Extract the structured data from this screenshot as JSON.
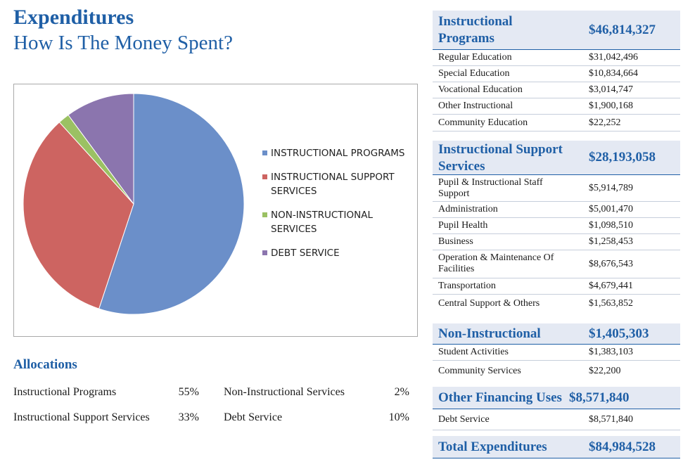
{
  "header": {
    "title": "Expenditures",
    "subtitle": "How Is The Money Spent?"
  },
  "chart_data": {
    "type": "pie",
    "categories": [
      "INSTRUCTIONAL PROGRAMS",
      "INSTRUCTIONAL SUPPORT SERVICES",
      "NON-INSTRUCTIONAL SERVICES",
      "DEBT SERVICE"
    ],
    "values": [
      46814327,
      28193058,
      1405303,
      8571840
    ],
    "colors": [
      "#6b8fc9",
      "#cd6461",
      "#9bc163",
      "#8b75ae"
    ],
    "legend_position": "right"
  },
  "allocations": {
    "title": "Allocations",
    "items": [
      {
        "label": "Instructional Programs",
        "value": "55%"
      },
      {
        "label": "Instructional Support Services",
        "value": "33%"
      },
      {
        "label": "Non-Instructional Services",
        "value": "2%"
      },
      {
        "label": "Debt Service",
        "value": "10%"
      }
    ]
  },
  "breakdown": {
    "sections": [
      {
        "title": "Instructional Programs",
        "amount": "$46,814,327",
        "rows": [
          {
            "label": "Regular Education",
            "amount": "$31,042,496"
          },
          {
            "label": "Special Education",
            "amount": "$10,834,664"
          },
          {
            "label": "Vocational Education",
            "amount": "$3,014,747"
          },
          {
            "label": "Other Instructional",
            "amount": "$1,900,168"
          },
          {
            "label": "Community Education",
            "amount": "$22,252"
          }
        ]
      },
      {
        "title": "Instructional Support Services",
        "amount": "$28,193,058",
        "rows": [
          {
            "label": "Pupil & Instructional Staff Support",
            "amount": "$5,914,789"
          },
          {
            "label": "Administration",
            "amount": "$5,001,470"
          },
          {
            "label": "Pupil Health",
            "amount": "$1,098,510"
          },
          {
            "label": "Business",
            "amount": "$1,258,453"
          },
          {
            "label": "Operation & Maintenance Of Facilities",
            "amount": "$8,676,543"
          },
          {
            "label": "Transportation",
            "amount": "$4,679,441"
          },
          {
            "label": "Central Support & Others",
            "amount": "$1,563,852"
          }
        ]
      },
      {
        "title": "Non-Instructional",
        "amount": "$1,405,303",
        "rows": [
          {
            "label": "Student Activities",
            "amount": "$1,383,103"
          },
          {
            "label": "Community Services",
            "amount": "$22,200"
          }
        ]
      },
      {
        "title": "Other Financing Uses",
        "amount": "$8,571,840",
        "rows": [
          {
            "label": "Debt Service",
            "amount": "$8,571,840"
          }
        ]
      },
      {
        "title": "Total Expenditures",
        "amount": "$84,984,528",
        "rows": []
      }
    ]
  }
}
